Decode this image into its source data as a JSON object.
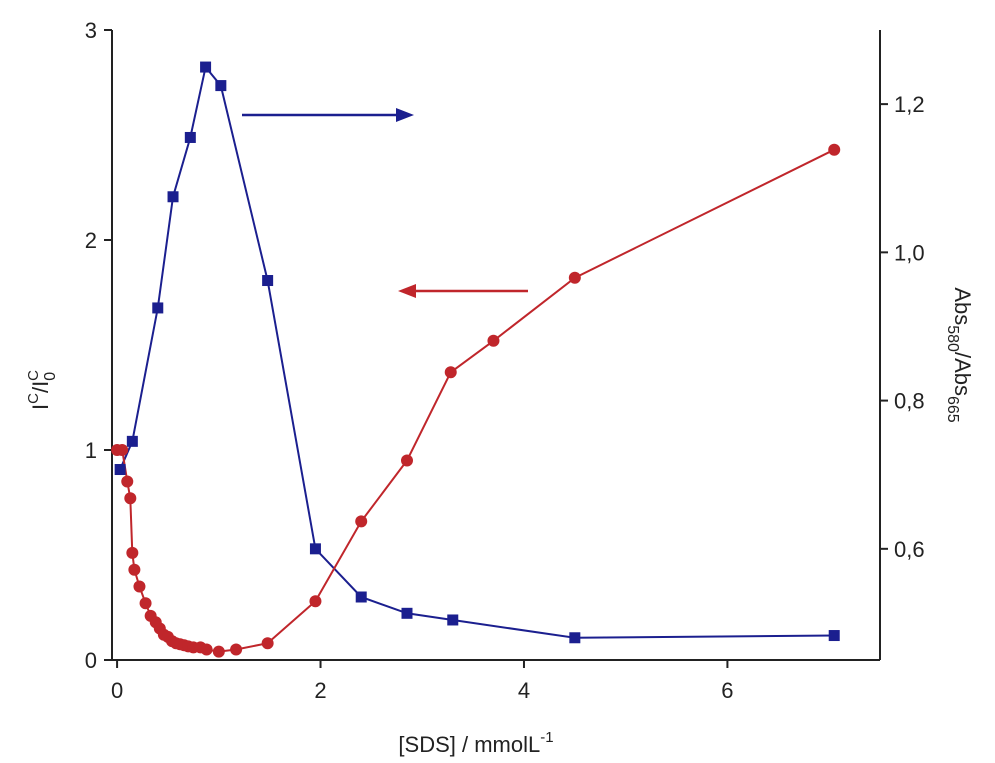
{
  "chart_data": {
    "type": "line",
    "xlabel": {
      "main": "[SDS] / mmolL",
      "sup": "-1"
    },
    "ylabel_left": {
      "I": "I",
      "sup1": "C",
      "slash": "/I",
      "sub": "0",
      "sup2": "C"
    },
    "ylabel_right": {
      "abs1": "Abs",
      "sub1": "580",
      "slash": "/Abs",
      "sub2": "665"
    },
    "x_axis": {
      "range": [
        -0.05,
        7.5
      ],
      "ticks": [
        0,
        2,
        4,
        6
      ],
      "tick_labels": [
        "0",
        "2",
        "4",
        "6"
      ]
    },
    "y_left": {
      "range": [
        0,
        3
      ],
      "ticks": [
        0,
        1,
        2,
        3
      ],
      "tick_labels": [
        "0",
        "1",
        "2",
        "3"
      ]
    },
    "y_right": {
      "range": [
        0.45,
        1.3
      ],
      "ticks": [
        0.6,
        0.8,
        1.0,
        1.2
      ],
      "tick_labels": [
        "0,6",
        "0,8",
        "1,0",
        "1,2"
      ]
    },
    "grid": false,
    "series": [
      {
        "axis": "right",
        "marker": "square",
        "color": "#1b1f8f",
        "x": [
          0.03,
          0.15,
          0.4,
          0.55,
          0.72,
          0.87,
          1.02,
          1.48,
          1.95,
          2.4,
          2.85,
          3.3,
          4.5,
          7.05
        ],
        "y": [
          0.707,
          0.745,
          0.925,
          1.075,
          1.155,
          1.25,
          1.225,
          0.962,
          0.6,
          0.535,
          0.513,
          0.504,
          0.48,
          0.483
        ]
      },
      {
        "axis": "left",
        "marker": "circle",
        "color": "#c0262b",
        "x": [
          0.0,
          0.05,
          0.1,
          0.13,
          0.15,
          0.17,
          0.22,
          0.28,
          0.33,
          0.38,
          0.42,
          0.46,
          0.5,
          0.54,
          0.58,
          0.62,
          0.66,
          0.7,
          0.75,
          0.82,
          0.88,
          1.0,
          1.17,
          1.48,
          1.95,
          2.4,
          2.85,
          3.28,
          3.7,
          4.5,
          7.05
        ],
        "y": [
          1.0,
          1.0,
          0.85,
          0.77,
          0.51,
          0.43,
          0.35,
          0.27,
          0.21,
          0.18,
          0.15,
          0.12,
          0.11,
          0.09,
          0.08,
          0.075,
          0.07,
          0.065,
          0.06,
          0.06,
          0.05,
          0.04,
          0.05,
          0.08,
          0.28,
          0.66,
          0.95,
          1.37,
          1.52,
          1.82,
          2.43
        ]
      }
    ],
    "annotations": [
      {
        "type": "arrow",
        "direction": "right",
        "color": "#1b1f8f",
        "points_to": "right-axis"
      },
      {
        "type": "arrow",
        "direction": "left",
        "color": "#c0262b",
        "points_to": "left-axis"
      }
    ]
  }
}
